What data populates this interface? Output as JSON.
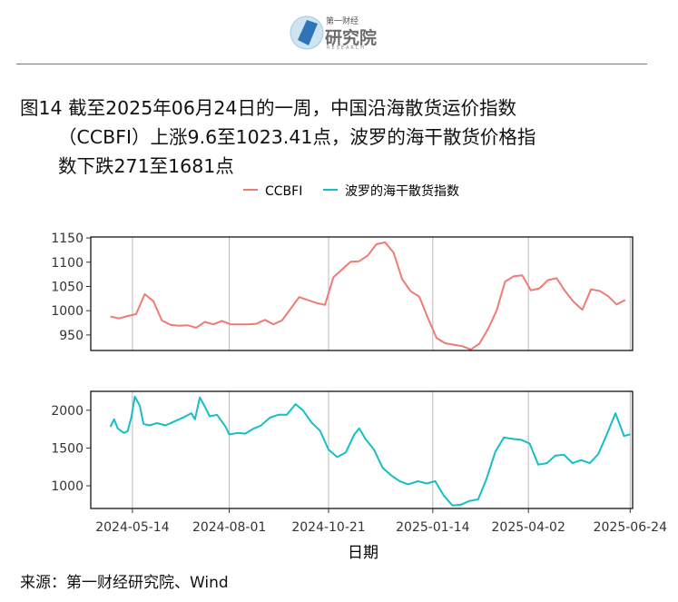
{
  "header": {
    "logo_brand": "第一财经",
    "logo_main": "研究院",
    "logo_sub": "RESEARCH"
  },
  "title": {
    "line1": "图14  截至2025年06月24日的一周，中国沿海散货运价指数",
    "line2": "（CCBFI）上涨9.6至1023.41点，波罗的海干散货价格指",
    "line3": "数下跌271至1681点"
  },
  "source": "来源：第一财经研究院、Wind",
  "colors": {
    "ccbfi": "#F07A74",
    "bdi": "#16BEC6",
    "grid": "#b8b8b8",
    "frame": "#000000"
  },
  "chart_data": {
    "type": "line",
    "xlabel": "日期",
    "x_ticks": [
      "2024-05-14",
      "2024-08-01",
      "2024-10-21",
      "2025-01-14",
      "2025-04-02",
      "2025-06-24"
    ],
    "x_range": [
      "2024-04-10",
      "2025-06-26"
    ],
    "legend": {
      "position": "top",
      "entries": [
        "CCBFI",
        "波罗的海干散货指数"
      ]
    },
    "panels": [
      {
        "series": "CCBFI",
        "ylim": [
          918,
          1152
        ],
        "yticks": [
          950,
          1000,
          1050,
          1100,
          1150
        ],
        "points": [
          [
            "2024-04-26",
            988
          ],
          [
            "2024-05-03",
            984
          ],
          [
            "2024-05-10",
            989
          ],
          [
            "2024-05-17",
            993
          ],
          [
            "2024-05-24",
            1034
          ],
          [
            "2024-05-31",
            1020
          ],
          [
            "2024-06-07",
            980
          ],
          [
            "2024-06-14",
            971
          ],
          [
            "2024-06-21",
            969
          ],
          [
            "2024-06-28",
            970
          ],
          [
            "2024-07-05",
            965
          ],
          [
            "2024-07-12",
            977
          ],
          [
            "2024-07-19",
            972
          ],
          [
            "2024-07-26",
            979
          ],
          [
            "2024-08-02",
            972
          ],
          [
            "2024-08-09",
            972
          ],
          [
            "2024-08-16",
            972
          ],
          [
            "2024-08-23",
            973
          ],
          [
            "2024-08-30",
            981
          ],
          [
            "2024-09-06",
            972
          ],
          [
            "2024-09-13",
            980
          ],
          [
            "2024-09-20",
            1004
          ],
          [
            "2024-09-27",
            1028
          ],
          [
            "2024-10-04",
            1022
          ],
          [
            "2024-10-11",
            1016
          ],
          [
            "2024-10-18",
            1012
          ],
          [
            "2024-10-25",
            1069
          ],
          [
            "2024-11-01",
            1085
          ],
          [
            "2024-11-08",
            1101
          ],
          [
            "2024-11-15",
            1102
          ],
          [
            "2024-11-22",
            1114
          ],
          [
            "2024-11-29",
            1137
          ],
          [
            "2024-12-06",
            1141
          ],
          [
            "2024-12-13",
            1120
          ],
          [
            "2024-12-20",
            1065
          ],
          [
            "2024-12-27",
            1040
          ],
          [
            "2025-01-03",
            1029
          ],
          [
            "2025-01-10",
            985
          ],
          [
            "2025-01-17",
            944
          ],
          [
            "2025-01-24",
            933
          ],
          [
            "2025-01-31",
            930
          ],
          [
            "2025-02-07",
            927
          ],
          [
            "2025-02-14",
            920
          ],
          [
            "2025-02-21",
            932
          ],
          [
            "2025-02-28",
            962
          ],
          [
            "2025-03-07",
            1000
          ],
          [
            "2025-03-14",
            1060
          ],
          [
            "2025-03-21",
            1071
          ],
          [
            "2025-03-28",
            1073
          ],
          [
            "2025-04-04",
            1042
          ],
          [
            "2025-04-11",
            1046
          ],
          [
            "2025-04-18",
            1063
          ],
          [
            "2025-04-25",
            1067
          ],
          [
            "2025-05-02",
            1040
          ],
          [
            "2025-05-09",
            1018
          ],
          [
            "2025-05-16",
            1002
          ],
          [
            "2025-05-23",
            1044
          ],
          [
            "2025-05-30",
            1041
          ],
          [
            "2025-06-06",
            1030
          ],
          [
            "2025-06-13",
            1013
          ],
          [
            "2025-06-20",
            1022
          ]
        ]
      },
      {
        "series": "波罗的海干散货指数",
        "ylim": [
          700,
          2250
        ],
        "yticks": [
          1000,
          1500,
          2000
        ],
        "points": [
          [
            "2024-04-26",
            1780
          ],
          [
            "2024-04-29",
            1880
          ],
          [
            "2024-05-02",
            1760
          ],
          [
            "2024-05-07",
            1700
          ],
          [
            "2024-05-10",
            1720
          ],
          [
            "2024-05-13",
            1900
          ],
          [
            "2024-05-16",
            2180
          ],
          [
            "2024-05-20",
            2060
          ],
          [
            "2024-05-23",
            1820
          ],
          [
            "2024-05-28",
            1800
          ],
          [
            "2024-06-03",
            1830
          ],
          [
            "2024-06-10",
            1800
          ],
          [
            "2024-06-17",
            1850
          ],
          [
            "2024-06-24",
            1900
          ],
          [
            "2024-07-01",
            1960
          ],
          [
            "2024-07-04",
            1880
          ],
          [
            "2024-07-08",
            2170
          ],
          [
            "2024-07-12",
            2050
          ],
          [
            "2024-07-16",
            1920
          ],
          [
            "2024-07-22",
            1940
          ],
          [
            "2024-07-29",
            1780
          ],
          [
            "2024-08-01",
            1680
          ],
          [
            "2024-08-08",
            1700
          ],
          [
            "2024-08-14",
            1690
          ],
          [
            "2024-08-20",
            1750
          ],
          [
            "2024-08-27",
            1800
          ],
          [
            "2024-09-03",
            1900
          ],
          [
            "2024-09-10",
            1940
          ],
          [
            "2024-09-17",
            1940
          ],
          [
            "2024-09-24",
            2080
          ],
          [
            "2024-09-30",
            2000
          ],
          [
            "2024-10-07",
            1840
          ],
          [
            "2024-10-14",
            1730
          ],
          [
            "2024-10-21",
            1480
          ],
          [
            "2024-10-28",
            1380
          ],
          [
            "2024-11-04",
            1440
          ],
          [
            "2024-11-11",
            1680
          ],
          [
            "2024-11-15",
            1760
          ],
          [
            "2024-11-20",
            1620
          ],
          [
            "2024-11-27",
            1480
          ],
          [
            "2024-12-04",
            1240
          ],
          [
            "2024-12-11",
            1140
          ],
          [
            "2024-12-18",
            1060
          ],
          [
            "2024-12-25",
            1020
          ],
          [
            "2025-01-02",
            1060
          ],
          [
            "2025-01-09",
            1030
          ],
          [
            "2025-01-16",
            1060
          ],
          [
            "2025-01-23",
            870
          ],
          [
            "2025-01-30",
            740
          ],
          [
            "2025-02-06",
            750
          ],
          [
            "2025-02-13",
            800
          ],
          [
            "2025-02-20",
            820
          ],
          [
            "2025-02-27",
            1100
          ],
          [
            "2025-03-06",
            1450
          ],
          [
            "2025-03-13",
            1640
          ],
          [
            "2025-03-20",
            1620
          ],
          [
            "2025-03-27",
            1610
          ],
          [
            "2025-04-03",
            1560
          ],
          [
            "2025-04-10",
            1280
          ],
          [
            "2025-04-17",
            1300
          ],
          [
            "2025-04-24",
            1400
          ],
          [
            "2025-05-01",
            1410
          ],
          [
            "2025-05-08",
            1300
          ],
          [
            "2025-05-15",
            1340
          ],
          [
            "2025-05-22",
            1300
          ],
          [
            "2025-05-29",
            1420
          ],
          [
            "2025-06-05",
            1680
          ],
          [
            "2025-06-12",
            1960
          ],
          [
            "2025-06-19",
            1660
          ],
          [
            "2025-06-24",
            1681
          ]
        ]
      }
    ]
  }
}
